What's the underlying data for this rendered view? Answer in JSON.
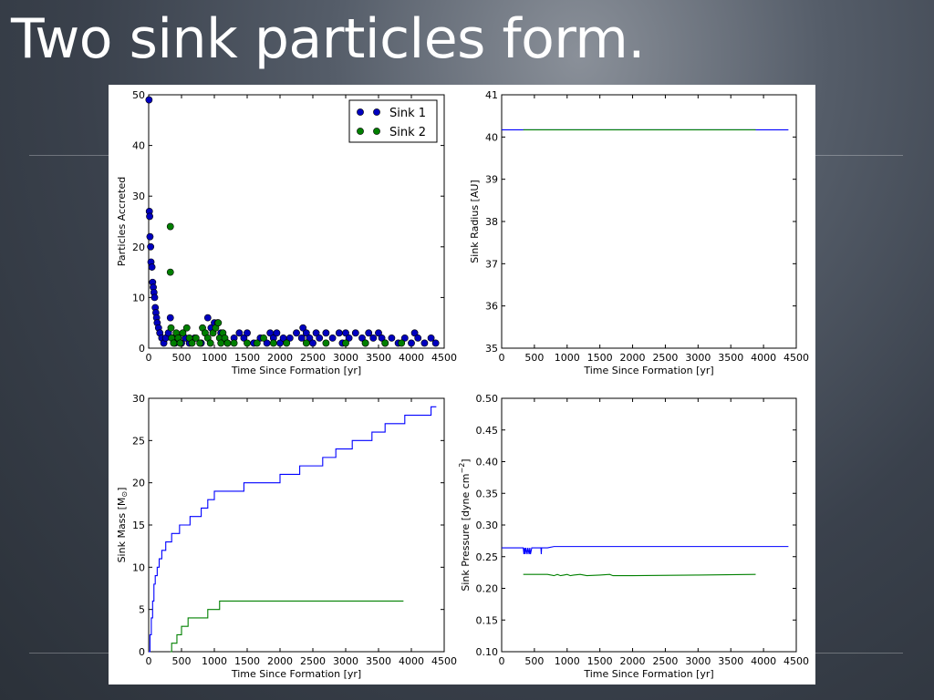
{
  "slide": {
    "title": "Two sink particles form."
  },
  "colors": {
    "sink1": "#0000ff",
    "sink2": "#008000"
  },
  "chart_data": [
    {
      "id": "accreted",
      "type": "scatter",
      "xlabel": "Time Since Formation [yr]",
      "ylabel": "Particles Accreted",
      "xlim": [
        0,
        4500
      ],
      "ylim": [
        0,
        50
      ],
      "xticks": [
        "0",
        "500",
        "1000",
        "1500",
        "2000",
        "2500",
        "3000",
        "3500",
        "4000",
        "4500"
      ],
      "yticks": [
        "0",
        "10",
        "20",
        "30",
        "40",
        "50"
      ],
      "legend": {
        "position": "top-right",
        "entries": [
          "Sink 1",
          "Sink 2"
        ]
      },
      "series": [
        {
          "name": "Sink 1",
          "color": "#0000bf",
          "points": [
            [
              5,
              49
            ],
            [
              10,
              27
            ],
            [
              15,
              26
            ],
            [
              20,
              22
            ],
            [
              30,
              20
            ],
            [
              35,
              17
            ],
            [
              50,
              16
            ],
            [
              60,
              13
            ],
            [
              70,
              12
            ],
            [
              80,
              11
            ],
            [
              90,
              10
            ],
            [
              100,
              8
            ],
            [
              110,
              7
            ],
            [
              120,
              6
            ],
            [
              130,
              5
            ],
            [
              150,
              4
            ],
            [
              170,
              3
            ],
            [
              200,
              2
            ],
            [
              230,
              1
            ],
            [
              260,
              2
            ],
            [
              300,
              3
            ],
            [
              330,
              6
            ],
            [
              360,
              2
            ],
            [
              400,
              1
            ],
            [
              450,
              2
            ],
            [
              500,
              1
            ],
            [
              560,
              2
            ],
            [
              620,
              1
            ],
            [
              700,
              2
            ],
            [
              800,
              1
            ],
            [
              900,
              6
            ],
            [
              950,
              4
            ],
            [
              1000,
              5
            ],
            [
              1050,
              5
            ],
            [
              1100,
              3
            ],
            [
              1150,
              2
            ],
            [
              1200,
              1
            ],
            [
              1300,
              2
            ],
            [
              1380,
              3
            ],
            [
              1450,
              2
            ],
            [
              1500,
              3
            ],
            [
              1600,
              1
            ],
            [
              1700,
              2
            ],
            [
              1800,
              1
            ],
            [
              1850,
              3
            ],
            [
              1900,
              2
            ],
            [
              1950,
              3
            ],
            [
              2000,
              1
            ],
            [
              2050,
              2
            ],
            [
              2150,
              2
            ],
            [
              2250,
              3
            ],
            [
              2330,
              2
            ],
            [
              2350,
              4
            ],
            [
              2400,
              3
            ],
            [
              2450,
              2
            ],
            [
              2500,
              1
            ],
            [
              2550,
              3
            ],
            [
              2600,
              2
            ],
            [
              2700,
              3
            ],
            [
              2800,
              2
            ],
            [
              2900,
              3
            ],
            [
              2950,
              1
            ],
            [
              3000,
              3
            ],
            [
              3050,
              2
            ],
            [
              3150,
              3
            ],
            [
              3250,
              2
            ],
            [
              3300,
              1
            ],
            [
              3350,
              3
            ],
            [
              3420,
              2
            ],
            [
              3500,
              3
            ],
            [
              3550,
              2
            ],
            [
              3600,
              1
            ],
            [
              3700,
              2
            ],
            [
              3800,
              1
            ],
            [
              3900,
              2
            ],
            [
              4000,
              1
            ],
            [
              4050,
              3
            ],
            [
              4100,
              2
            ],
            [
              4200,
              1
            ],
            [
              4300,
              2
            ],
            [
              4370,
              1
            ]
          ]
        },
        {
          "name": "Sink 2",
          "color": "#007f00",
          "points": [
            [
              330,
              24
            ],
            [
              330,
              15
            ],
            [
              340,
              4
            ],
            [
              350,
              2
            ],
            [
              380,
              1
            ],
            [
              420,
              3
            ],
            [
              450,
              2
            ],
            [
              480,
              1
            ],
            [
              520,
              3
            ],
            [
              580,
              4
            ],
            [
              620,
              2
            ],
            [
              660,
              1
            ],
            [
              720,
              2
            ],
            [
              780,
              1
            ],
            [
              820,
              4
            ],
            [
              860,
              3
            ],
            [
              900,
              2
            ],
            [
              940,
              1
            ],
            [
              980,
              3
            ],
            [
              1020,
              4
            ],
            [
              1060,
              5
            ],
            [
              1080,
              2
            ],
            [
              1100,
              1
            ],
            [
              1130,
              3
            ],
            [
              1160,
              2
            ],
            [
              1200,
              1
            ],
            [
              1300,
              1
            ],
            [
              1500,
              1
            ],
            [
              1650,
              1
            ],
            [
              1750,
              2
            ],
            [
              1900,
              1
            ],
            [
              2100,
              1
            ],
            [
              2400,
              1
            ],
            [
              2700,
              1
            ],
            [
              3000,
              1
            ],
            [
              3300,
              1
            ],
            [
              3600,
              1
            ],
            [
              3850,
              1
            ]
          ]
        }
      ]
    },
    {
      "id": "radius",
      "type": "line",
      "xlabel": "Time Since Formation [yr]",
      "ylabel": "Sink Radius [AU]",
      "xlim": [
        0,
        4500
      ],
      "ylim": [
        35,
        41
      ],
      "xticks": [
        "0",
        "500",
        "1000",
        "1500",
        "2000",
        "2500",
        "3000",
        "3500",
        "4000",
        "4500"
      ],
      "yticks": [
        "35",
        "36",
        "37",
        "38",
        "39",
        "40",
        "41"
      ],
      "series": [
        {
          "name": "Sink 1",
          "color": "#0000ff",
          "points": [
            [
              0,
              40.17
            ],
            [
              4380,
              40.17
            ]
          ]
        },
        {
          "name": "Sink 2",
          "color": "#008000",
          "points": [
            [
              330,
              40.17
            ],
            [
              3880,
              40.17
            ]
          ]
        }
      ]
    },
    {
      "id": "mass",
      "type": "line",
      "xlabel": "Time Since Formation [yr]",
      "ylabel": "Sink Mass [M",
      "ylabel_sub": "⊙",
      "ylabel_close": "]",
      "xlim": [
        0,
        4500
      ],
      "ylim": [
        0,
        30
      ],
      "xticks": [
        "0",
        "500",
        "1000",
        "1500",
        "2000",
        "2500",
        "3000",
        "3500",
        "4000",
        "4500"
      ],
      "yticks": [
        "0",
        "5",
        "10",
        "15",
        "20",
        "25",
        "30"
      ],
      "series": [
        {
          "name": "Sink 1",
          "color": "#0000ff",
          "step": true,
          "points": [
            [
              0,
              0
            ],
            [
              20,
              2
            ],
            [
              40,
              4
            ],
            [
              60,
              6
            ],
            [
              80,
              8
            ],
            [
              100,
              9
            ],
            [
              130,
              10
            ],
            [
              160,
              11
            ],
            [
              200,
              12
            ],
            [
              260,
              13
            ],
            [
              350,
              14
            ],
            [
              470,
              15
            ],
            [
              630,
              16
            ],
            [
              800,
              17
            ],
            [
              900,
              18
            ],
            [
              1000,
              19
            ],
            [
              1450,
              20
            ],
            [
              2000,
              21
            ],
            [
              2300,
              22
            ],
            [
              2650,
              23
            ],
            [
              2850,
              24
            ],
            [
              3100,
              25
            ],
            [
              3400,
              26
            ],
            [
              3600,
              27
            ],
            [
              3900,
              28
            ],
            [
              4300,
              29
            ],
            [
              4380,
              29
            ]
          ]
        },
        {
          "name": "Sink 2",
          "color": "#008000",
          "step": true,
          "points": [
            [
              330,
              0
            ],
            [
              350,
              1
            ],
            [
              430,
              2
            ],
            [
              500,
              3
            ],
            [
              600,
              4
            ],
            [
              900,
              5
            ],
            [
              1080,
              6
            ],
            [
              3880,
              6
            ]
          ]
        }
      ]
    },
    {
      "id": "pressure",
      "type": "line",
      "xlabel": "Time Since Formation [yr]",
      "ylabel": "Sink Pressure [dyne cm",
      "ylabel_sup": "−2",
      "ylabel_close": "]",
      "xlim": [
        0,
        4500
      ],
      "ylim": [
        0.1,
        0.5
      ],
      "xticks": [
        "0",
        "500",
        "1000",
        "1500",
        "2000",
        "2500",
        "3000",
        "3500",
        "4000",
        "4500"
      ],
      "yticks": [
        "0.10",
        "0.15",
        "0.20",
        "0.25",
        "0.30",
        "0.35",
        "0.40",
        "0.45",
        "0.50"
      ],
      "series": [
        {
          "name": "Sink 1",
          "color": "#0000ff",
          "points": [
            [
              0,
              0.264
            ],
            [
              330,
              0.264
            ],
            [
              340,
              0.254
            ],
            [
              350,
              0.264
            ],
            [
              360,
              0.254
            ],
            [
              370,
              0.264
            ],
            [
              390,
              0.254
            ],
            [
              400,
              0.264
            ],
            [
              420,
              0.254
            ],
            [
              430,
              0.264
            ],
            [
              440,
              0.254
            ],
            [
              460,
              0.264
            ],
            [
              600,
              0.264
            ],
            [
              605,
              0.254
            ],
            [
              610,
              0.264
            ],
            [
              700,
              0.264
            ],
            [
              800,
              0.266
            ],
            [
              4380,
              0.266
            ]
          ]
        },
        {
          "name": "Sink 2",
          "color": "#008000",
          "points": [
            [
              330,
              0.222
            ],
            [
              700,
              0.222
            ],
            [
              800,
              0.22
            ],
            [
              850,
              0.222
            ],
            [
              900,
              0.22
            ],
            [
              950,
              0.221
            ],
            [
              1000,
              0.222
            ],
            [
              1050,
              0.22
            ],
            [
              1100,
              0.221
            ],
            [
              1200,
              0.222
            ],
            [
              1300,
              0.22
            ],
            [
              1500,
              0.221
            ],
            [
              1650,
              0.222
            ],
            [
              1700,
              0.22
            ],
            [
              2000,
              0.22
            ],
            [
              3000,
              0.221
            ],
            [
              3880,
              0.222
            ]
          ]
        }
      ]
    }
  ]
}
